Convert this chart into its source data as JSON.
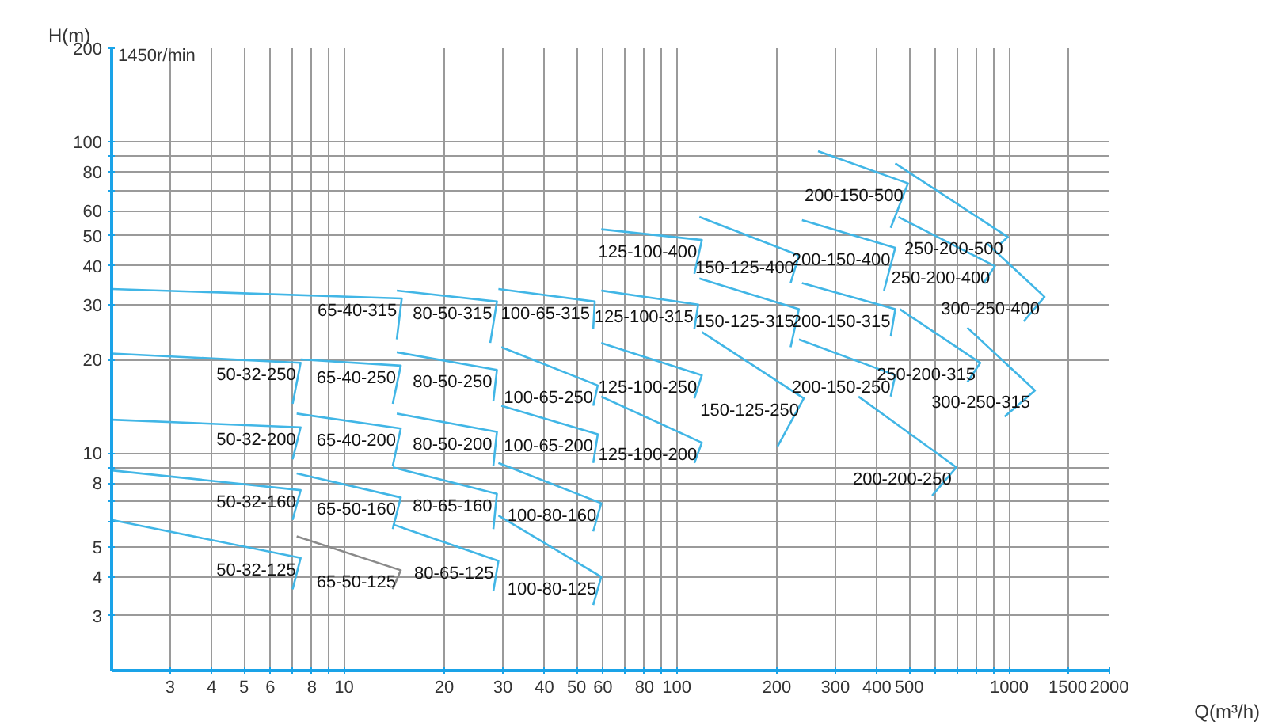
{
  "chart_data": {
    "type": "line",
    "log": "xy",
    "xlabel": "Q(m³/h)",
    "ylabel": "H(m)",
    "annotations": [
      "1450r/min"
    ],
    "grid": true,
    "legend": false,
    "marker": "none",
    "line_style": "solid",
    "xlim": [
      2,
      2000
    ],
    "ylim": [
      2,
      200
    ],
    "xticks": [
      3,
      4,
      5,
      6,
      {
        "value": 7,
        "label": null
      },
      8,
      {
        "value": 9,
        "label": null
      },
      10,
      20,
      30,
      40,
      50,
      60,
      {
        "value": 70,
        "label": null
      },
      80,
      {
        "value": 90,
        "label": null
      },
      100,
      200,
      300,
      400,
      500,
      {
        "value": 600,
        "label": null
      },
      {
        "value": 700,
        "label": null
      },
      {
        "value": 800,
        "label": null
      },
      {
        "value": 900,
        "label": null
      },
      1000,
      1500,
      2000
    ],
    "yticks": [
      3,
      4,
      5,
      {
        "value": 6,
        "label": null
      },
      {
        "value": 7,
        "label": null
      },
      8,
      {
        "value": 9,
        "label": null
      },
      10,
      20,
      30,
      40,
      50,
      60,
      {
        "value": 70,
        "label": null
      },
      80,
      {
        "value": 90,
        "label": null
      },
      100,
      200
    ],
    "series": [
      {
        "name": "65-40-315",
        "color": "#41b6e6",
        "x": [
          2,
          14.9,
          14.4
        ],
        "values": [
          33.7,
          31.4,
          23.2
        ]
      },
      {
        "name": "80-50-315",
        "color": "#41b6e6",
        "x": [
          14.4,
          28.8,
          27.5
        ],
        "values": [
          33.3,
          30.7,
          22.6
        ]
      },
      {
        "name": "100-65-315",
        "color": "#41b6e6",
        "x": [
          29.1,
          56.7,
          56.1
        ],
        "values": [
          33.7,
          30.7,
          25.1
        ]
      },
      {
        "name": "125-100-315",
        "color": "#41b6e6",
        "x": [
          59.3,
          116,
          113
        ],
        "values": [
          33.3,
          30.0,
          25.1
        ]
      },
      {
        "name": "150-125-315",
        "color": "#41b6e6",
        "x": [
          117,
          233,
          220
        ],
        "values": [
          36.4,
          29.0,
          21.9
        ]
      },
      {
        "name": "200-150-315",
        "color": "#41b6e6",
        "x": [
          238,
          454,
          440
        ],
        "values": [
          35.2,
          29.0,
          23.7
        ]
      },
      {
        "name": "250-200-315",
        "color": "#41b6e6",
        "x": [
          469,
          818,
          748
        ],
        "values": [
          29.0,
          19.5,
          16.9
        ]
      },
      {
        "name": "300-250-315",
        "color": "#41b6e6",
        "x": [
          748,
          1194,
          968
        ],
        "values": [
          25.3,
          15.9,
          13.1
        ]
      },
      {
        "name": "50-32-250",
        "color": "#41b6e6",
        "x": [
          2,
          7.4,
          7.0
        ],
        "values": [
          20.9,
          19.5,
          14.4
        ]
      },
      {
        "name": "65-40-250",
        "color": "#41b6e6",
        "x": [
          7.4,
          14.8,
          14.0
        ],
        "values": [
          20.0,
          19.1,
          14.4
        ]
      },
      {
        "name": "80-50-250",
        "color": "#41b6e6",
        "x": [
          14.4,
          28.8,
          28.1
        ],
        "values": [
          21.1,
          18.5,
          14.7
        ]
      },
      {
        "name": "100-65-250",
        "color": "#41b6e6",
        "x": [
          29.7,
          57.9,
          56.1
        ],
        "values": [
          21.9,
          16.5,
          14.2
        ]
      },
      {
        "name": "125-100-250",
        "color": "#41b6e6",
        "x": [
          59.3,
          119,
          113
        ],
        "values": [
          22.6,
          17.8,
          15.0
        ]
      },
      {
        "name": "150-125-250",
        "color": "#41b6e6",
        "x": [
          119,
          241,
          201
        ],
        "values": [
          24.5,
          15.0,
          10.5
        ]
      },
      {
        "name": "200-150-250",
        "color": "#41b6e6",
        "x": [
          233,
          454,
          440
        ],
        "values": [
          23.2,
          17.8,
          15.2
        ]
      },
      {
        "name": "200-200-250",
        "color": "#41b6e6",
        "x": [
          352,
          693,
          586
        ],
        "values": [
          15.2,
          9.0,
          7.3
        ]
      },
      {
        "name": "50-32-200",
        "color": "#41b6e6",
        "x": [
          2,
          7.4,
          7.0
        ],
        "values": [
          12.8,
          12.1,
          9.55
        ]
      },
      {
        "name": "65-40-200",
        "color": "#41b6e6",
        "x": [
          7.2,
          14.8,
          14.0
        ],
        "values": [
          13.4,
          12.0,
          9.1
        ]
      },
      {
        "name": "80-50-200",
        "color": "#41b6e6",
        "x": [
          14.4,
          28.8,
          28.1
        ],
        "values": [
          13.4,
          11.7,
          9.1
        ]
      },
      {
        "name": "100-65-200",
        "color": "#41b6e6",
        "x": [
          29.7,
          57.9,
          56.1
        ],
        "values": [
          14.2,
          11.5,
          9.3
        ]
      },
      {
        "name": "125-100-200",
        "color": "#41b6e6",
        "x": [
          59.3,
          119,
          113
        ],
        "values": [
          15.2,
          10.8,
          9.3
        ]
      },
      {
        "name": "50-32-160",
        "color": "#41b6e6",
        "x": [
          2,
          7.4,
          7.0
        ],
        "values": [
          8.8,
          7.6,
          6.1
        ]
      },
      {
        "name": "65-50-160",
        "color": "#41b6e6",
        "x": [
          7.2,
          14.8,
          14.0
        ],
        "values": [
          8.6,
          7.2,
          5.7
        ]
      },
      {
        "name": "80-65-160",
        "color": "#41b6e6",
        "x": [
          14.0,
          28.8,
          28.1
        ],
        "values": [
          9.0,
          7.4,
          5.7
        ]
      },
      {
        "name": "100-80-160",
        "color": "#41b6e6",
        "x": [
          29.1,
          59.3,
          56.1
        ],
        "values": [
          9.3,
          6.9,
          5.6
        ]
      },
      {
        "name": "50-32-125",
        "color": "#41b6e6",
        "x": [
          2,
          7.4,
          7.0
        ],
        "values": [
          6.1,
          4.6,
          3.65
        ]
      },
      {
        "name": "65-50-125",
        "color": "#8a8a8a",
        "x": [
          7.2,
          14.8,
          14.0
        ],
        "values": [
          5.4,
          4.2,
          3.65
        ]
      },
      {
        "name": "80-65-125",
        "color": "#41b6e6",
        "x": [
          14.0,
          29.1,
          28.1
        ],
        "values": [
          5.9,
          4.5,
          3.6
        ]
      },
      {
        "name": "100-80-125",
        "color": "#41b6e6",
        "x": [
          29.1,
          59.3,
          56.1
        ],
        "values": [
          6.3,
          4.0,
          3.25
        ]
      },
      {
        "name": "125-100-400",
        "color": "#41b6e6",
        "x": [
          59.3,
          119,
          113
        ],
        "values": [
          52.4,
          48.4,
          37.7
        ]
      },
      {
        "name": "150-125-400",
        "color": "#41b6e6",
        "x": [
          117,
          233,
          220
        ],
        "values": [
          57.4,
          43.2,
          35.2
        ]
      },
      {
        "name": "200-150-400",
        "color": "#41b6e6",
        "x": [
          238,
          454,
          420
        ],
        "values": [
          56.1,
          45.7,
          33.3
        ]
      },
      {
        "name": "250-200-400",
        "color": "#41b6e6",
        "x": [
          464,
          905,
          837
        ],
        "values": [
          57.4,
          39.9,
          35.2
        ]
      },
      {
        "name": "300-250-400",
        "color": "#41b6e6",
        "x": [
          855,
          1276,
          1105
        ],
        "values": [
          47.3,
          31.8,
          26.5
        ]
      },
      {
        "name": "200-150-500",
        "color": "#41b6e6",
        "x": [
          266,
          496,
          440
        ],
        "values": [
          93.4,
          73.6,
          53.0
        ]
      },
      {
        "name": "250-200-500",
        "color": "#41b6e6",
        "x": [
          454,
          990,
          935
        ],
        "values": [
          85.3,
          49.5,
          46.8
        ]
      }
    ]
  }
}
